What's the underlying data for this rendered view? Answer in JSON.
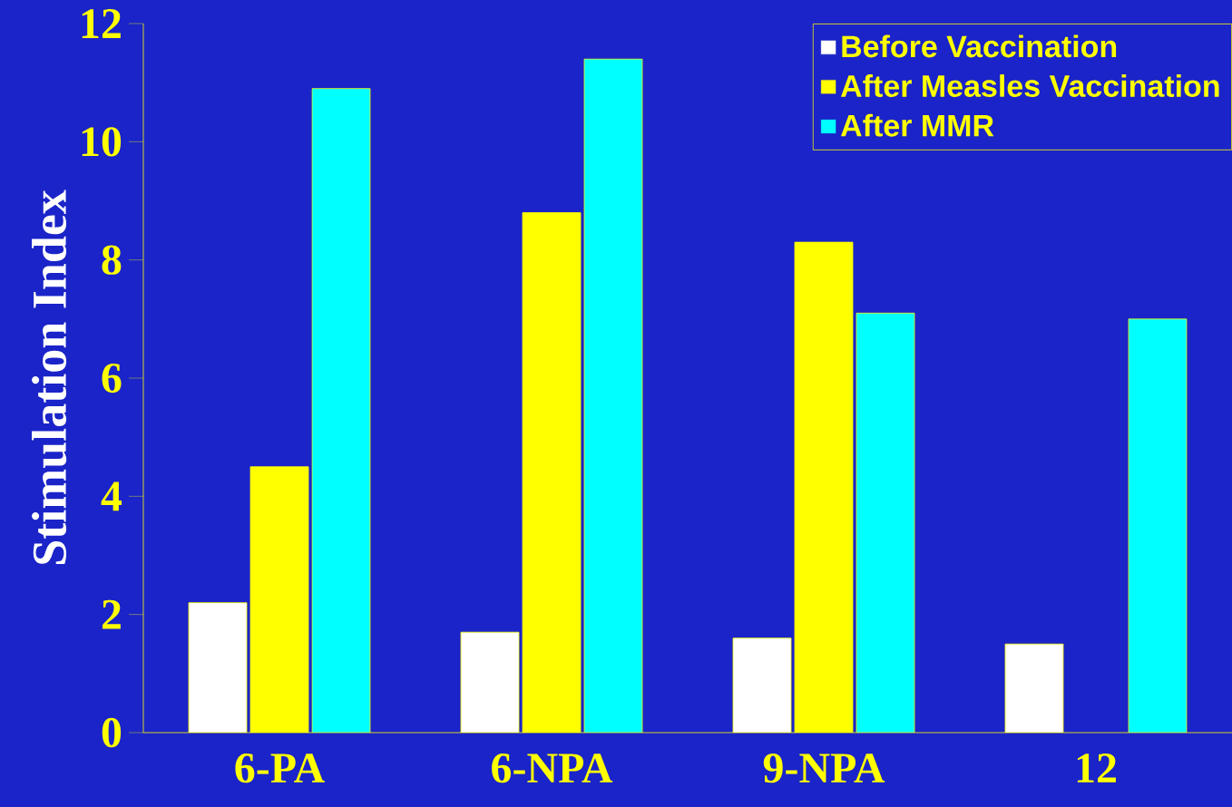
{
  "chart_data": {
    "type": "bar",
    "ylabel": "Stimulation Index",
    "categories": [
      "6-PA",
      "6-NPA",
      "9-NPA",
      "12"
    ],
    "series": [
      {
        "name": "Before Vaccination",
        "color": "#ffffff",
        "values": [
          2.2,
          1.7,
          1.6,
          1.5
        ]
      },
      {
        "name": "After Measles Vaccination",
        "color": "#ffff00",
        "values": [
          4.5,
          8.8,
          8.3,
          null
        ]
      },
      {
        "name": "After MMR",
        "color": "#00ffff",
        "values": [
          10.9,
          11.4,
          7.1,
          7.0
        ]
      }
    ],
    "ylim": [
      0,
      12
    ],
    "yticks": [
      0,
      2,
      4,
      6,
      8,
      10,
      12
    ],
    "legend": "top right"
  }
}
